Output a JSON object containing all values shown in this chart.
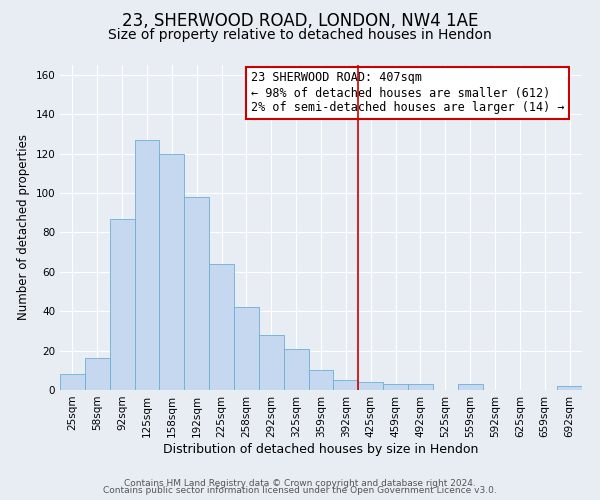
{
  "title": "23, SHERWOOD ROAD, LONDON, NW4 1AE",
  "subtitle": "Size of property relative to detached houses in Hendon",
  "xlabel": "Distribution of detached houses by size in Hendon",
  "ylabel": "Number of detached properties",
  "bar_labels": [
    "25sqm",
    "58sqm",
    "92sqm",
    "125sqm",
    "158sqm",
    "192sqm",
    "225sqm",
    "258sqm",
    "292sqm",
    "325sqm",
    "359sqm",
    "392sqm",
    "425sqm",
    "459sqm",
    "492sqm",
    "525sqm",
    "559sqm",
    "592sqm",
    "625sqm",
    "659sqm",
    "692sqm"
  ],
  "bar_values": [
    8,
    16,
    87,
    127,
    120,
    98,
    64,
    42,
    28,
    21,
    10,
    5,
    4,
    3,
    3,
    0,
    3,
    0,
    0,
    0,
    2
  ],
  "bar_color": "#c5d8f0",
  "bar_edge_color": "#6baed6",
  "background_color": "#e8edf4",
  "vline_color": "#cc0000",
  "annotation_text": "23 SHERWOOD ROAD: 407sqm\n← 98% of detached houses are smaller (612)\n2% of semi-detached houses are larger (14) →",
  "annotation_box_color": "#cc0000",
  "ylim": [
    0,
    165
  ],
  "yticks": [
    0,
    20,
    40,
    60,
    80,
    100,
    120,
    140,
    160
  ],
  "footer_line1": "Contains HM Land Registry data © Crown copyright and database right 2024.",
  "footer_line2": "Contains public sector information licensed under the Open Government Licence v3.0.",
  "title_fontsize": 12,
  "subtitle_fontsize": 10,
  "xlabel_fontsize": 9,
  "ylabel_fontsize": 8.5,
  "tick_fontsize": 7.5,
  "annotation_fontsize": 8.5,
  "footer_fontsize": 6.5
}
